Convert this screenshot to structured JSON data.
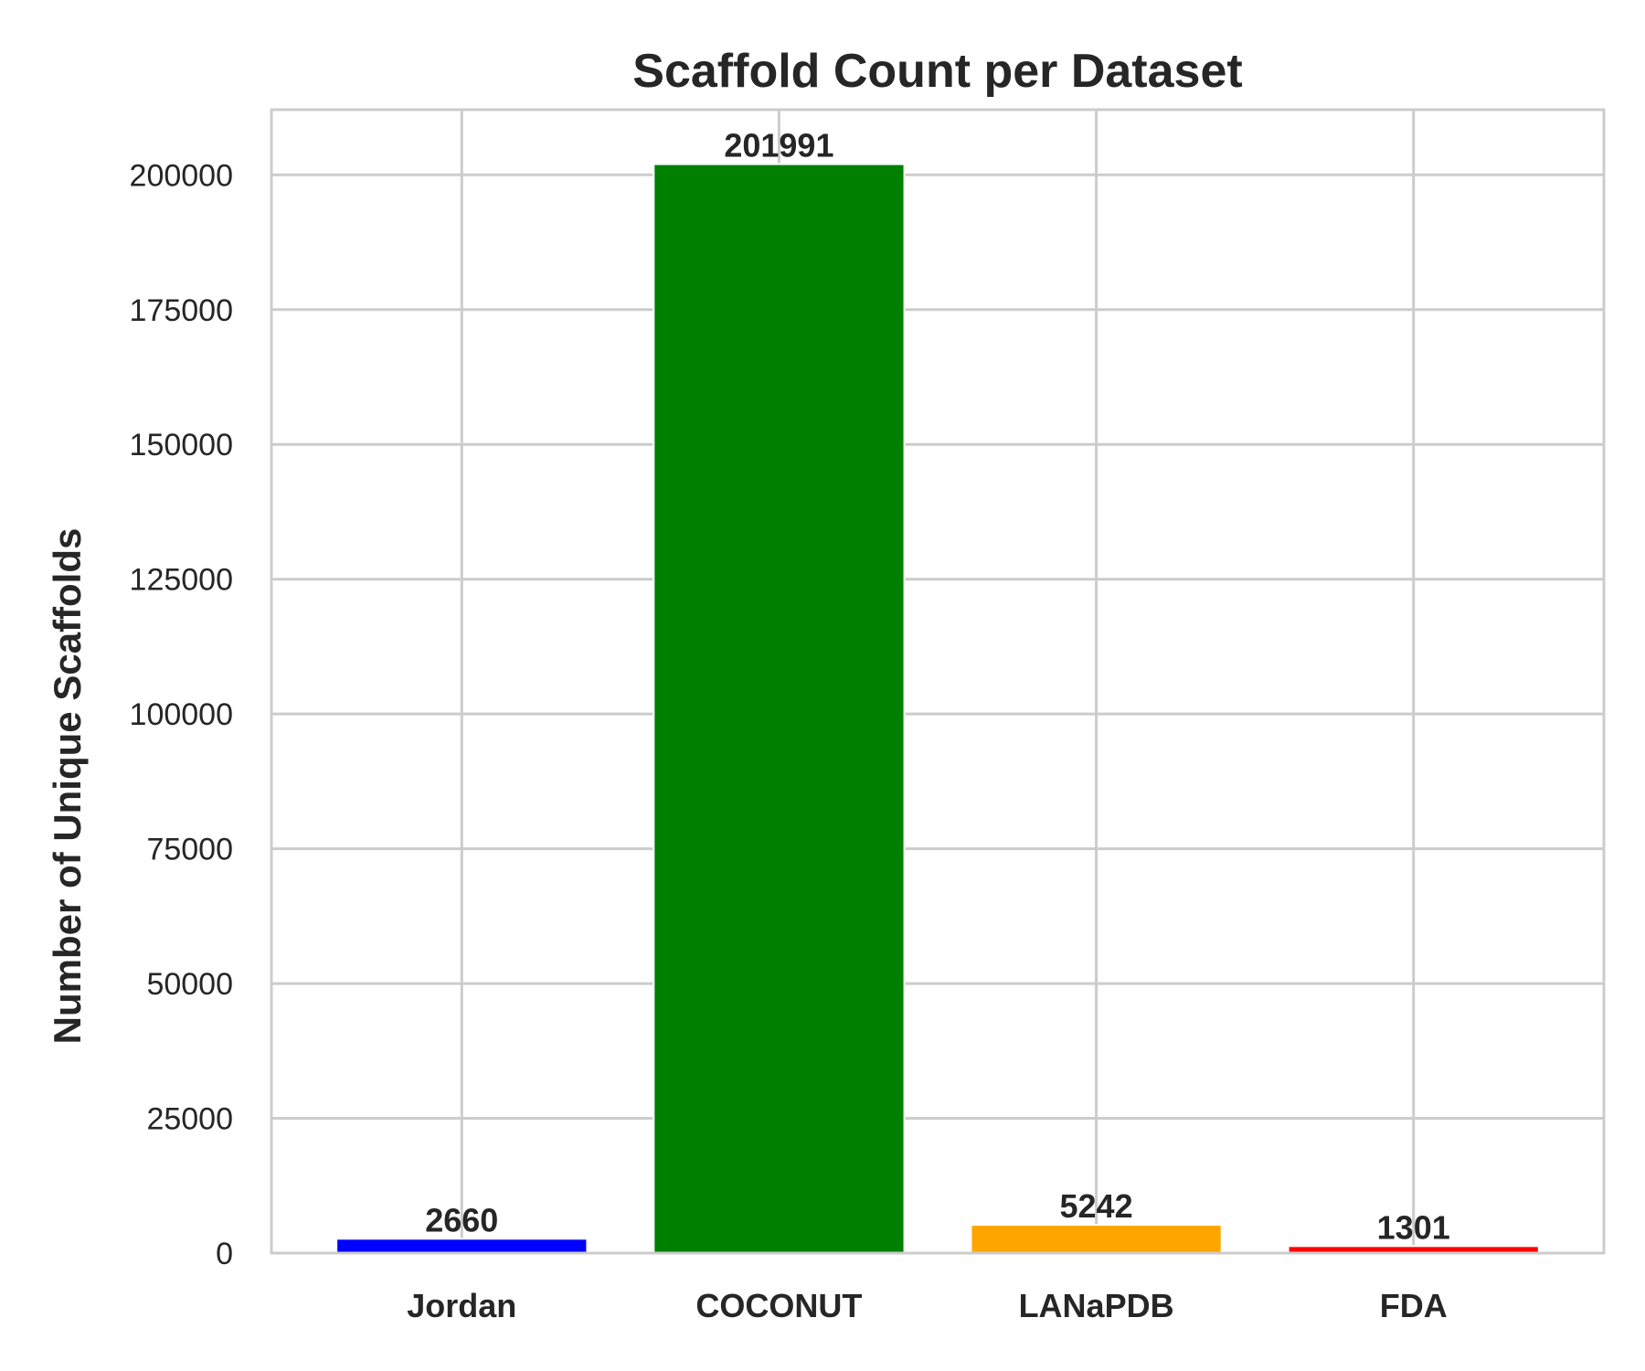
{
  "chart_data": {
    "type": "bar",
    "title": "Scaffold Count per Dataset",
    "xlabel": "",
    "ylabel": "Number of Unique Scaffolds",
    "categories": [
      "Jordan",
      "COCONUT",
      "LANaPDB",
      "FDA"
    ],
    "values": [
      2660,
      201991,
      5242,
      1301
    ],
    "value_labels": [
      "2660",
      "201991",
      "5242",
      "1301"
    ],
    "colors": [
      "#0000ff",
      "#008000",
      "#ffa500",
      "#ff0000"
    ],
    "yticks": [
      0,
      25000,
      50000,
      75000,
      100000,
      125000,
      150000,
      175000,
      200000
    ],
    "ytick_labels": [
      "0",
      "25000",
      "50000",
      "75000",
      "100000",
      "125000",
      "150000",
      "175000",
      "200000"
    ],
    "ylim": [
      0,
      212090
    ],
    "grid": true
  }
}
